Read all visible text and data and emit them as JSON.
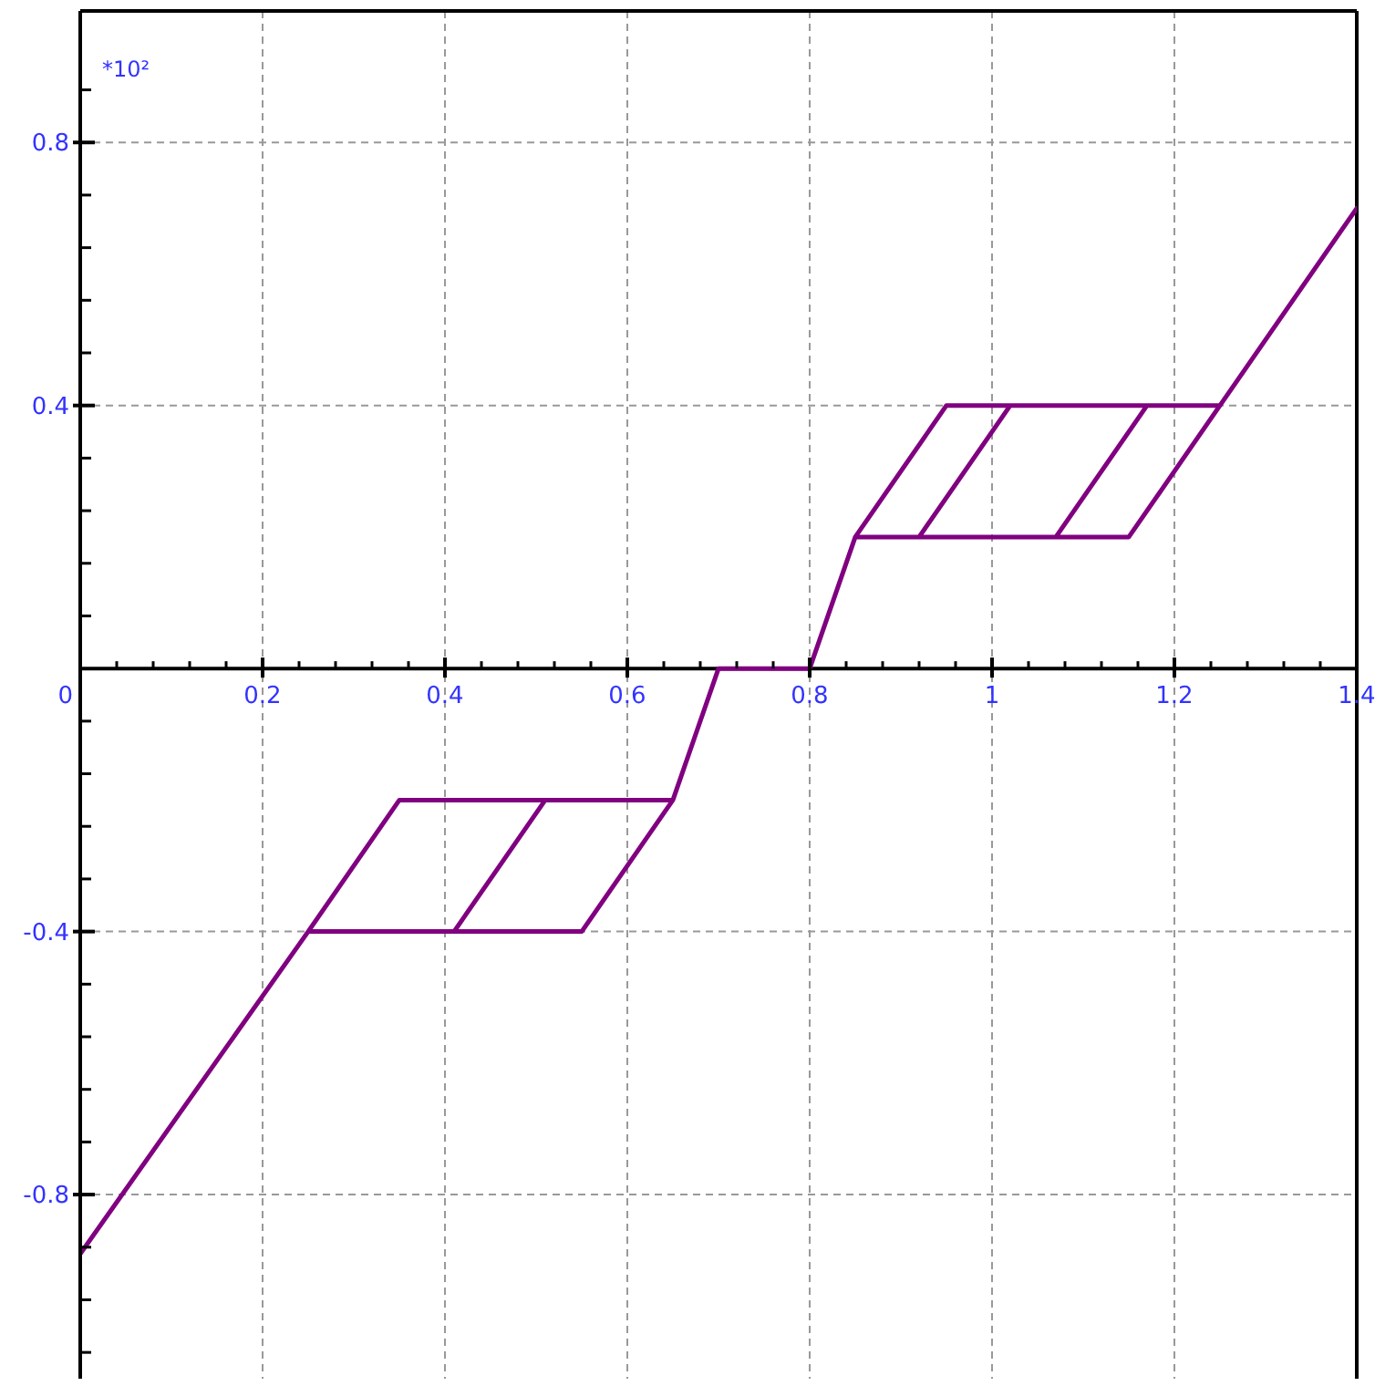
{
  "chart_data": {
    "type": "line",
    "x": [
      0,
      0.25,
      0.35,
      0.65,
      0.7,
      0.8,
      0.85,
      0.95,
      1.25,
      1.4,
      1.25,
      1.15,
      0.85,
      0.8,
      0.7,
      0.65,
      0.55,
      0.25,
      0,
      0.25,
      0.41,
      0.51,
      0.65,
      0.7,
      0.8,
      0.85,
      0.92,
      1.02,
      1.17,
      1.07,
      0.85
    ],
    "series": [
      {
        "color": "#800080",
        "values": [
          -0.89,
          -0.4,
          -0.2,
          -0.2,
          0,
          0,
          0.2,
          0.4,
          0.4,
          0.7,
          0.4,
          0.2,
          0.2,
          0,
          0,
          -0.2,
          -0.4,
          -0.4,
          -0.89,
          -0.4,
          -0.4,
          -0.2,
          -0.2,
          0,
          0,
          0.2,
          0.2,
          0.4,
          0.4,
          0.2,
          0.2
        ]
      }
    ],
    "xlim": [
      0,
      1.4
    ],
    "ylim": [
      -1.08,
      1.0
    ],
    "xticks": [
      0,
      {
        "value": 0.04,
        "label": null
      },
      {
        "value": 0.08,
        "label": null
      },
      {
        "value": 0.12,
        "label": null
      },
      {
        "value": 0.16,
        "label": null
      },
      0.2,
      {
        "value": 0.24,
        "label": null
      },
      {
        "value": 0.28,
        "label": null
      },
      {
        "value": 0.32,
        "label": null
      },
      {
        "value": 0.36,
        "label": null
      },
      0.4,
      {
        "value": 0.44,
        "label": null
      },
      {
        "value": 0.48,
        "label": null
      },
      {
        "value": 0.52,
        "label": null
      },
      {
        "value": 0.56,
        "label": null
      },
      0.6,
      {
        "value": 0.64,
        "label": null
      },
      {
        "value": 0.68,
        "label": null
      },
      {
        "value": 0.72,
        "label": null
      },
      {
        "value": 0.76,
        "label": null
      },
      0.8,
      {
        "value": 0.84,
        "label": null
      },
      {
        "value": 0.88,
        "label": null
      },
      {
        "value": 0.92,
        "label": null
      },
      {
        "value": 0.96,
        "label": null
      },
      1,
      {
        "value": 1.04,
        "label": null
      },
      {
        "value": 1.08,
        "label": null
      },
      {
        "value": 1.12,
        "label": null
      },
      {
        "value": 1.16,
        "label": null
      },
      1.2,
      {
        "value": 1.24,
        "label": null
      },
      {
        "value": 1.28,
        "label": null
      },
      {
        "value": 1.32,
        "label": null
      },
      {
        "value": 1.36,
        "label": null
      },
      1.4
    ],
    "yticks": [
      {
        "value": -1.04,
        "label": null
      },
      {
        "value": -0.96,
        "label": null
      },
      {
        "value": -0.88,
        "label": null
      },
      -0.8,
      {
        "value": -0.72,
        "label": null
      },
      {
        "value": -0.64,
        "label": null
      },
      {
        "value": -0.56,
        "label": null
      },
      {
        "value": -0.48,
        "label": null
      },
      -0.4,
      {
        "value": -0.32,
        "label": null
      },
      {
        "value": -0.24,
        "label": null
      },
      {
        "value": -0.16,
        "label": null
      },
      {
        "value": -0.08,
        "label": null
      },
      {
        "value": 0.08,
        "label": null
      },
      {
        "value": 0.16,
        "label": null
      },
      {
        "value": 0.24,
        "label": null
      },
      {
        "value": 0.32,
        "label": null
      },
      0.4,
      {
        "value": 0.48,
        "label": null
      },
      {
        "value": 0.56,
        "label": null
      },
      {
        "value": 0.64,
        "label": null
      },
      {
        "value": 0.72,
        "label": null
      },
      0.8,
      {
        "value": 0.88,
        "label": null
      }
    ],
    "grid": true,
    "annotations": [
      "*10²"
    ]
  }
}
